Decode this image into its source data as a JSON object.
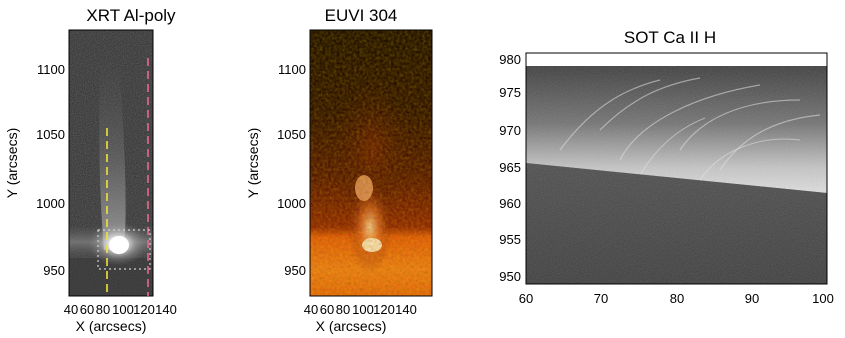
{
  "panels": [
    {
      "title": "XRT Al-poly",
      "ylabel": "Y (arcsecs)",
      "xlabel": "X (arcsecs)",
      "yticks": [
        "1100",
        "1050",
        "1000",
        "950"
      ],
      "xticks": [
        "40",
        "60",
        "80",
        "100",
        "120",
        "140"
      ],
      "colors": {
        "yellow_line": "#f2e23a",
        "pink_line": "#e8688a",
        "box": "#d0d0d0"
      }
    },
    {
      "title": "EUVI 304",
      "ylabel": "Y (arcsecs)",
      "xlabel": "X (arcsecs)",
      "yticks": [
        "1100",
        "1050",
        "1000",
        "950"
      ],
      "xticks": [
        "40",
        "60",
        "80",
        "100",
        "120",
        "140"
      ]
    },
    {
      "title": "SOT Ca II H",
      "yticks": [
        "980",
        "975",
        "970",
        "965",
        "960",
        "955",
        "950"
      ],
      "xticks": [
        "60",
        "70",
        "80",
        "90",
        "100"
      ]
    }
  ]
}
